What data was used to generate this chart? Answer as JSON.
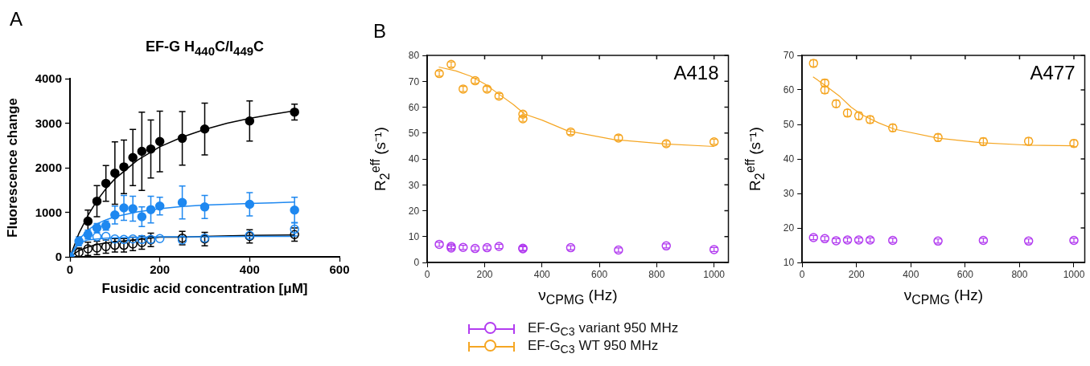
{
  "chart_data": [
    {
      "type": "scatter",
      "title": "EF-G H$_{440}$C/I$_{449}$C",
      "xlabel": "Fusidic acid concentration [μM]",
      "ylabel": "Fluorescence change",
      "annotations": [
        "A"
      ],
      "xlim": [
        0,
        600
      ],
      "xticks": [
        0,
        200,
        400,
        600
      ],
      "ylim": [
        0,
        4000
      ],
      "yticks": [
        0,
        1000,
        2000,
        3000,
        4000
      ],
      "grid": false,
      "legend": false,
      "marker": "circle",
      "x": [
        0,
        20,
        40,
        60,
        80,
        100,
        120,
        140,
        160,
        180,
        200,
        250,
        300,
        400,
        500
      ],
      "series": [
        {
          "type": "line",
          "marker": "none",
          "color": "#000000",
          "x": [
            0,
            20,
            40,
            60,
            80,
            100,
            150,
            200,
            250,
            300,
            350,
            400,
            450,
            500
          ],
          "values": [
            0,
            530,
            930,
            1260,
            1530,
            1750,
            2170,
            2470,
            2690,
            2860,
            3000,
            3110,
            3200,
            3280
          ]
        },
        {
          "type": "line",
          "marker": "none",
          "color": "#1e88f0",
          "x": [
            0,
            20,
            40,
            60,
            80,
            100,
            150,
            200,
            250,
            300,
            350,
            400,
            450,
            500
          ],
          "values": [
            0,
            390,
            600,
            740,
            830,
            900,
            1010,
            1080,
            1130,
            1160,
            1180,
            1200,
            1210,
            1230
          ]
        },
        {
          "type": "line",
          "marker": "none",
          "color": "#000000",
          "x": [
            0,
            20,
            40,
            60,
            80,
            100,
            200,
            250,
            300,
            400,
            500
          ],
          "values": [
            0,
            140,
            220,
            280,
            310,
            340,
            440,
            440,
            460,
            480,
            490
          ]
        },
        {
          "type": "line",
          "marker": "none",
          "color": "#1e88f0",
          "x": [
            0,
            20,
            40,
            60,
            80,
            100,
            200,
            250,
            300,
            400,
            500
          ],
          "values": [
            0,
            310,
            380,
            400,
            420,
            430,
            450,
            450,
            450,
            460,
            460
          ]
        },
        {
          "color": "#000000",
          "values": [
            null,
            100,
            180,
            200,
            230,
            260,
            260,
            290,
            320,
            380,
            null,
            420,
            400,
            460,
            500
          ],
          "errors": [
            null,
            100,
            150,
            150,
            150,
            150,
            150,
            150,
            150,
            150,
            null,
            150,
            150,
            150,
            150
          ]
        },
        {
          "color": "#1e88f0",
          "values": [
            null,
            null,
            null,
            450,
            460,
            400,
            390,
            400,
            390,
            390,
            410,
            380,
            420,
            480,
            620
          ],
          "errors": [
            null,
            null,
            null,
            null,
            null,
            null,
            null,
            null,
            null,
            null,
            null,
            null,
            null,
            null,
            150
          ]
        },
        {
          "color": "#000000",
          "values": [
            null,
            null,
            800,
            1250,
            1650,
            1880,
            2020,
            2230,
            2370,
            2420,
            2590,
            2660,
            2870,
            3050,
            3250
          ],
          "errors": [
            null,
            null,
            250,
            350,
            400,
            700,
            600,
            630,
            880,
            650,
            680,
            600,
            580,
            450,
            180
          ]
        },
        {
          "color": "#1e88f0",
          "values": [
            0,
            350,
            500,
            650,
            700,
            940,
            1100,
            1080,
            900,
            1060,
            1140,
            1220,
            1120,
            1180,
            1050
          ],
          "errors": [
            null,
            100,
            100,
            100,
            100,
            200,
            280,
            280,
            220,
            300,
            200,
            370,
            260,
            260,
            290
          ]
        }
      ]
    },
    {
      "type": "scatter",
      "title": "A418",
      "xlabel": "ν$_{CPMG}$ (Hz)",
      "ylabel": "R$_{2}$$^{eff}$ (s⁻¹)",
      "annotations": [
        "B"
      ],
      "xlim": [
        0,
        1050
      ],
      "xticks": [
        0,
        200,
        400,
        600,
        800,
        1000
      ],
      "ylim": [
        0,
        80
      ],
      "yticks": [
        0,
        10,
        20,
        30,
        40,
        50,
        60,
        70,
        80
      ],
      "grid": false,
      "legend": "bottom",
      "marker": "circle",
      "series": [
        {
          "name": "EF-G$_{C3}$ variant 950 MHz",
          "color": "#b23cf0",
          "x": [
            41.7,
            83.3,
            83.3,
            125,
            166.7,
            208.3,
            250,
            333.3,
            333.3,
            500,
            666.7,
            833.3,
            1000
          ],
          "values": [
            7.0,
            6.2,
            5.6,
            5.8,
            5.4,
            5.7,
            6.2,
            5.5,
            5.3,
            5.7,
            4.8,
            6.4,
            5.0
          ],
          "errors": [
            0.8,
            0.8,
            0.8,
            0.8,
            0.8,
            0.8,
            0.8,
            0.8,
            0.8,
            0.8,
            0.8,
            0.8,
            0.8
          ]
        },
        {
          "type": "line",
          "marker": "none",
          "color": "#f5a623",
          "x": [
            40,
            100,
            150,
            200,
            250,
            300,
            340,
            400,
            490,
            650,
            830,
            1000
          ],
          "values": [
            75.5,
            74,
            72,
            69,
            65,
            61,
            57.3,
            55,
            50.8,
            47.5,
            45.8,
            44.8
          ]
        },
        {
          "name": "EF-G$_{C3}$ WT 950 MHz",
          "color": "#f5a623",
          "x": [
            41.7,
            83.3,
            125,
            166.7,
            208.3,
            250,
            333.3,
            333.3,
            500,
            666.7,
            833.3,
            1000
          ],
          "values": [
            73,
            76.5,
            67,
            70.2,
            67,
            64.3,
            57.3,
            55.5,
            50.4,
            48.1,
            45.9,
            46.6
          ],
          "errors": [
            1,
            1,
            1,
            1,
            1,
            1,
            1,
            1,
            1,
            1,
            1,
            1
          ]
        }
      ]
    },
    {
      "type": "scatter",
      "title": "A477",
      "xlabel": "ν$_{CPMG}$ (Hz)",
      "ylabel": "R$_{2}$$^{eff}$ (s⁻¹)",
      "xlim": [
        0,
        1040
      ],
      "xticks": [
        0,
        200,
        400,
        600,
        800,
        1000
      ],
      "ylim": [
        10,
        70
      ],
      "yticks": [
        10,
        20,
        30,
        40,
        50,
        60,
        70
      ],
      "grid": false,
      "legend": false,
      "marker": "circle",
      "series": [
        {
          "color": "#b23cf0",
          "x": [
            41.7,
            83.3,
            125,
            166.7,
            208.3,
            250,
            333.3,
            500,
            666.7,
            833.3,
            1000
          ],
          "values": [
            17.2,
            16.9,
            16.3,
            16.5,
            16.5,
            16.5,
            16.4,
            16.2,
            16.4,
            16.2,
            16.4
          ],
          "errors": [
            0.6,
            0.6,
            0.6,
            0.6,
            0.6,
            0.6,
            0.6,
            0.6,
            0.6,
            0.6,
            0.6
          ]
        },
        {
          "type": "line",
          "marker": "none",
          "color": "#f5a623",
          "x": [
            40,
            90,
            140,
            180,
            220,
            280,
            340,
            500,
            660,
            830,
            1000
          ],
          "values": [
            63.8,
            61,
            58,
            55,
            52.8,
            50.5,
            48.6,
            46,
            44.7,
            44,
            43.8
          ]
        },
        {
          "color": "#f5a623",
          "x": [
            41.7,
            83.3,
            83.3,
            125,
            166.7,
            208.3,
            250,
            333.3,
            500,
            666.7,
            833.3,
            1000
          ],
          "values": [
            67.7,
            62,
            60,
            56,
            53.3,
            52.5,
            51.4,
            49,
            46.2,
            45,
            45.1,
            44.5
          ],
          "errors": [
            1,
            1,
            1,
            1,
            1,
            1,
            1,
            1,
            1,
            1,
            1,
            1
          ]
        }
      ]
    }
  ]
}
